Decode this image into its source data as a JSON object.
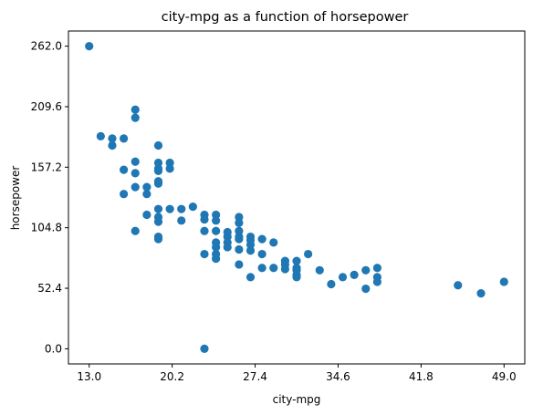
{
  "chart_data": {
    "type": "scatter",
    "title": "city-mpg as a function of horsepower",
    "xlabel": "city-mpg",
    "ylabel": "horsepower",
    "xlim": [
      11.2,
      50.8
    ],
    "ylim": [
      -13.1,
      275.1
    ],
    "xticks": [
      13.0,
      20.2,
      27.4,
      34.6,
      41.8,
      49.0
    ],
    "xtick_labels": [
      "13.0",
      "20.2",
      "27.4",
      "34.6",
      "41.8",
      "49.0"
    ],
    "yticks": [
      0.0,
      52.4,
      104.8,
      157.2,
      209.6,
      262.0
    ],
    "ytick_labels": [
      "0.0",
      "52.4",
      "104.8",
      "157.2",
      "209.6",
      "262.0"
    ],
    "grid": false,
    "marker_color": "#1f77b4",
    "points": [
      {
        "x": 13,
        "y": 262
      },
      {
        "x": 14,
        "y": 184
      },
      {
        "x": 15,
        "y": 182
      },
      {
        "x": 15,
        "y": 176
      },
      {
        "x": 16,
        "y": 182
      },
      {
        "x": 16,
        "y": 155
      },
      {
        "x": 16,
        "y": 134
      },
      {
        "x": 17,
        "y": 207
      },
      {
        "x": 17,
        "y": 200
      },
      {
        "x": 17,
        "y": 162
      },
      {
        "x": 17,
        "y": 152
      },
      {
        "x": 17,
        "y": 140
      },
      {
        "x": 17,
        "y": 102
      },
      {
        "x": 18,
        "y": 140
      },
      {
        "x": 18,
        "y": 134
      },
      {
        "x": 18,
        "y": 116
      },
      {
        "x": 19,
        "y": 176
      },
      {
        "x": 19,
        "y": 161
      },
      {
        "x": 19,
        "y": 156
      },
      {
        "x": 19,
        "y": 154
      },
      {
        "x": 19,
        "y": 145
      },
      {
        "x": 19,
        "y": 143
      },
      {
        "x": 19,
        "y": 121
      },
      {
        "x": 19,
        "y": 114
      },
      {
        "x": 19,
        "y": 110
      },
      {
        "x": 19,
        "y": 97
      },
      {
        "x": 19,
        "y": 95
      },
      {
        "x": 20,
        "y": 161
      },
      {
        "x": 20,
        "y": 156
      },
      {
        "x": 20,
        "y": 121
      },
      {
        "x": 21,
        "y": 121
      },
      {
        "x": 21,
        "y": 111
      },
      {
        "x": 22,
        "y": 123
      },
      {
        "x": 23,
        "y": 116
      },
      {
        "x": 23,
        "y": 112
      },
      {
        "x": 23,
        "y": 102
      },
      {
        "x": 23,
        "y": 82
      },
      {
        "x": 23,
        "y": 0
      },
      {
        "x": 24,
        "y": 116
      },
      {
        "x": 24,
        "y": 111
      },
      {
        "x": 24,
        "y": 102
      },
      {
        "x": 24,
        "y": 92
      },
      {
        "x": 24,
        "y": 88
      },
      {
        "x": 24,
        "y": 82
      },
      {
        "x": 24,
        "y": 78
      },
      {
        "x": 25,
        "y": 101
      },
      {
        "x": 25,
        "y": 97
      },
      {
        "x": 25,
        "y": 92
      },
      {
        "x": 25,
        "y": 88
      },
      {
        "x": 26,
        "y": 114
      },
      {
        "x": 26,
        "y": 109
      },
      {
        "x": 26,
        "y": 102
      },
      {
        "x": 26,
        "y": 97
      },
      {
        "x": 26,
        "y": 95
      },
      {
        "x": 26,
        "y": 86
      },
      {
        "x": 26,
        "y": 73
      },
      {
        "x": 27,
        "y": 97
      },
      {
        "x": 27,
        "y": 94
      },
      {
        "x": 27,
        "y": 90
      },
      {
        "x": 27,
        "y": 85
      },
      {
        "x": 27,
        "y": 62
      },
      {
        "x": 28,
        "y": 95
      },
      {
        "x": 28,
        "y": 82
      },
      {
        "x": 28,
        "y": 70
      },
      {
        "x": 29,
        "y": 92
      },
      {
        "x": 29,
        "y": 70
      },
      {
        "x": 30,
        "y": 76
      },
      {
        "x": 30,
        "y": 73
      },
      {
        "x": 30,
        "y": 69
      },
      {
        "x": 31,
        "y": 76
      },
      {
        "x": 31,
        "y": 70
      },
      {
        "x": 31,
        "y": 68
      },
      {
        "x": 31,
        "y": 64
      },
      {
        "x": 31,
        "y": 62
      },
      {
        "x": 32,
        "y": 82
      },
      {
        "x": 33,
        "y": 68
      },
      {
        "x": 34,
        "y": 56
      },
      {
        "x": 35,
        "y": 62
      },
      {
        "x": 36,
        "y": 64
      },
      {
        "x": 37,
        "y": 68
      },
      {
        "x": 37,
        "y": 52
      },
      {
        "x": 38,
        "y": 70
      },
      {
        "x": 38,
        "y": 62
      },
      {
        "x": 38,
        "y": 58
      },
      {
        "x": 45,
        "y": 55
      },
      {
        "x": 47,
        "y": 48
      },
      {
        "x": 49,
        "y": 58
      }
    ]
  }
}
